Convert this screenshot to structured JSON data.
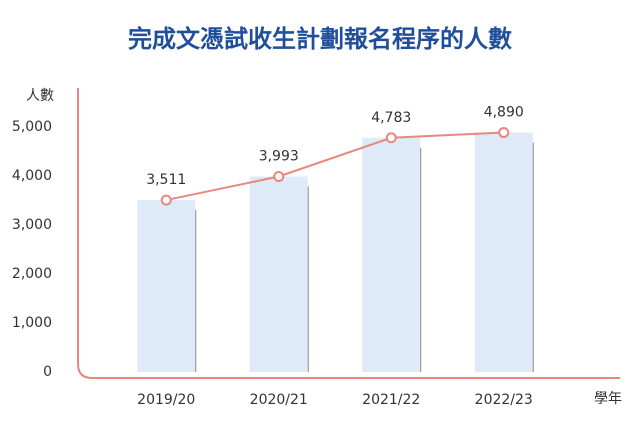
{
  "chart_data": {
    "type": "bar-line",
    "title": "完成文憑試收生計劃報名程序的人數",
    "y_label": "人數",
    "x_label": "學年",
    "categories": [
      "2019/20",
      "2020/21",
      "2021/22",
      "2022/23"
    ],
    "series": [
      {
        "values": [
          3511,
          3993,
          4783,
          4890
        ],
        "value_labels": [
          "3,511",
          "3,993",
          "4,783",
          "4,890"
        ],
        "color": "#e8877e",
        "bar_color": "#dfeaf8"
      }
    ],
    "ylim": [
      0,
      5800
    ],
    "yticks": [
      0,
      {
        "value": 1000,
        "label": "1,000"
      },
      {
        "value": 2000,
        "label": "2,000"
      },
      {
        "value": 3000,
        "label": "3,000"
      },
      {
        "value": 4000,
        "label": "4,000"
      },
      {
        "value": 5000,
        "label": "5,000"
      }
    ],
    "grid": false
  }
}
